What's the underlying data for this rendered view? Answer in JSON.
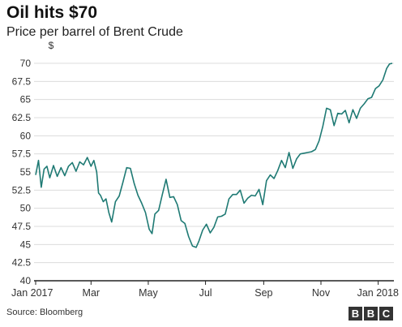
{
  "title": "Oil hits $70",
  "subtitle": "Price per barrel of Brent Crude",
  "source": "Source: Bloomberg",
  "logo": [
    "B",
    "B",
    "C"
  ],
  "colors": {
    "line": "#1f7a74",
    "grid": "#dcdcdc",
    "axis": "#222222",
    "text": "#333333"
  },
  "chart_data": {
    "type": "line",
    "title": "Oil hits $70",
    "subtitle": "Price per barrel of Brent Crude",
    "xlabel": "",
    "ylabel": "$",
    "ylim": [
      40,
      70
    ],
    "xlim": [
      "2017-01-01",
      "2018-01-16"
    ],
    "grid": true,
    "y_ticks": [
      "40",
      "42.5",
      "45",
      "47.5",
      "50",
      "52.5",
      "55",
      "57.5",
      "60",
      "62.5",
      "65",
      "67.5",
      "70"
    ],
    "x_ticks": [
      {
        "label": "Jan 2017",
        "date": "2017-01-01"
      },
      {
        "label": "Mar",
        "date": "2017-03-01"
      },
      {
        "label": "May",
        "date": "2017-05-01"
      },
      {
        "label": "Jul",
        "date": "2017-07-01"
      },
      {
        "label": "Sep",
        "date": "2017-09-01"
      },
      {
        "label": "Nov",
        "date": "2017-11-01"
      },
      {
        "label": "Jan 2018",
        "date": "2018-01-01"
      }
    ],
    "series": [
      {
        "x": [
          "2017-01-01",
          "2017-01-04",
          "2017-01-07",
          "2017-01-10",
          "2017-01-13",
          "2017-01-16",
          "2017-01-20",
          "2017-01-24",
          "2017-01-28",
          "2017-02-01",
          "2017-02-05",
          "2017-02-09",
          "2017-02-13",
          "2017-02-17",
          "2017-02-21",
          "2017-02-25",
          "2017-03-01",
          "2017-03-04",
          "2017-03-07",
          "2017-03-09",
          "2017-03-11",
          "2017-03-14",
          "2017-03-17",
          "2017-03-20",
          "2017-03-23",
          "2017-03-27",
          "2017-03-31",
          "2017-04-04",
          "2017-04-08",
          "2017-04-12",
          "2017-04-16",
          "2017-04-20",
          "2017-04-24",
          "2017-04-28",
          "2017-05-02",
          "2017-05-05",
          "2017-05-08",
          "2017-05-12",
          "2017-05-16",
          "2017-05-20",
          "2017-05-24",
          "2017-05-28",
          "2017-06-01",
          "2017-06-05",
          "2017-06-09",
          "2017-06-13",
          "2017-06-17",
          "2017-06-21",
          "2017-06-24",
          "2017-06-28",
          "2017-07-02",
          "2017-07-06",
          "2017-07-10",
          "2017-07-14",
          "2017-07-18",
          "2017-07-22",
          "2017-07-26",
          "2017-07-30",
          "2017-08-03",
          "2017-08-07",
          "2017-08-11",
          "2017-08-15",
          "2017-08-19",
          "2017-08-23",
          "2017-08-27",
          "2017-08-31",
          "2017-09-04",
          "2017-09-08",
          "2017-09-12",
          "2017-09-16",
          "2017-09-20",
          "2017-09-24",
          "2017-09-28",
          "2017-10-02",
          "2017-10-06",
          "2017-10-10",
          "2017-10-14",
          "2017-10-18",
          "2017-10-22",
          "2017-10-26",
          "2017-10-30",
          "2017-11-03",
          "2017-11-07",
          "2017-11-11",
          "2017-11-15",
          "2017-11-19",
          "2017-11-23",
          "2017-11-27",
          "2017-12-01",
          "2017-12-05",
          "2017-12-09",
          "2017-12-13",
          "2017-12-17",
          "2017-12-21",
          "2017-12-25",
          "2017-12-29",
          "2018-01-02",
          "2018-01-06",
          "2018-01-10",
          "2018-01-13",
          "2018-01-16"
        ],
        "values": [
          54.6,
          56.6,
          52.9,
          55.4,
          55.8,
          54.2,
          55.9,
          54.4,
          55.6,
          54.5,
          55.8,
          56.3,
          55.1,
          56.4,
          56.0,
          57.0,
          55.8,
          56.6,
          55.0,
          52.1,
          51.8,
          50.9,
          51.3,
          49.4,
          48.1,
          50.9,
          51.7,
          53.6,
          55.6,
          55.5,
          53.4,
          51.8,
          50.7,
          49.4,
          47.1,
          46.5,
          49.2,
          49.7,
          51.9,
          54.0,
          51.5,
          51.6,
          50.5,
          48.3,
          47.9,
          46.1,
          44.8,
          44.6,
          45.5,
          47.0,
          47.8,
          46.6,
          47.4,
          48.8,
          48.9,
          49.2,
          51.3,
          51.9,
          51.9,
          52.5,
          50.7,
          51.4,
          51.8,
          51.7,
          52.6,
          50.5,
          53.8,
          54.6,
          54.1,
          55.2,
          56.6,
          55.6,
          57.7,
          55.5,
          56.8,
          57.5,
          57.6,
          57.7,
          57.8,
          58.1,
          59.3,
          61.3,
          63.8,
          63.6,
          61.4,
          63.1,
          63.0,
          63.5,
          61.8,
          63.6,
          62.4,
          63.8,
          64.4,
          65.1,
          65.3,
          66.5,
          66.9,
          67.7,
          69.3,
          69.9,
          70.0
        ]
      }
    ]
  }
}
